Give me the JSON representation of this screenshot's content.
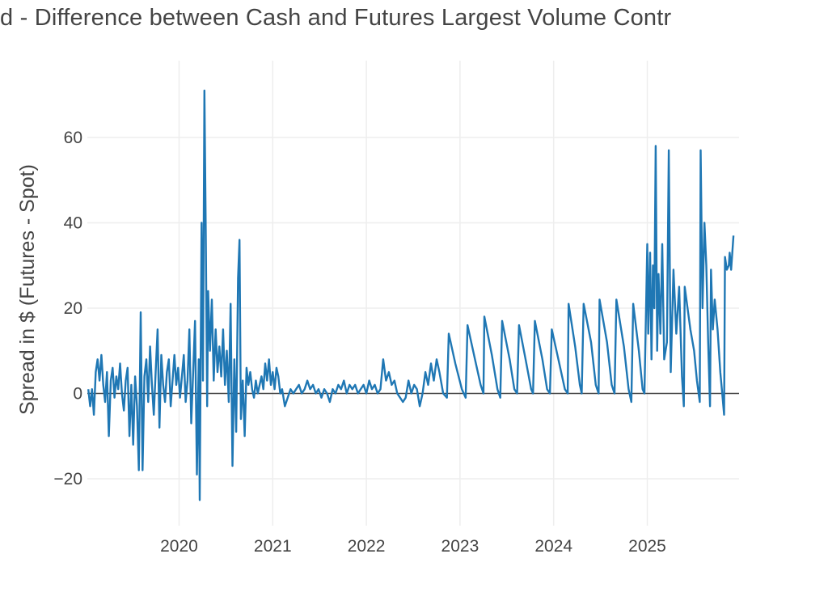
{
  "chart_data": {
    "type": "line",
    "title": "d - Difference between Cash and Futures Largest Volume Contr",
    "xlabel": "",
    "ylabel": "Spread in $ (Futures - Spot)",
    "x_tick_labels": [
      "2020",
      "2021",
      "2022",
      "2023",
      "2024",
      "2025"
    ],
    "x_tick_values": [
      2020,
      2021,
      2022,
      2023,
      2024,
      2025
    ],
    "y_tick_labels": [
      "60",
      "40",
      "20",
      "0",
      "−20"
    ],
    "y_tick_values": [
      60,
      40,
      20,
      0,
      -20
    ],
    "xlim": [
      2019.02,
      2025.98
    ],
    "ylim": [
      -31,
      78
    ],
    "grid": true,
    "zero_line": true,
    "line_color": "#1f77b4",
    "series": [
      {
        "name": "Spread",
        "points": [
          [
            2019.03,
            1
          ],
          [
            2019.05,
            -3
          ],
          [
            2019.07,
            1
          ],
          [
            2019.09,
            -5
          ],
          [
            2019.11,
            5
          ],
          [
            2019.13,
            8
          ],
          [
            2019.15,
            3
          ],
          [
            2019.17,
            9
          ],
          [
            2019.19,
            2
          ],
          [
            2019.21,
            -2
          ],
          [
            2019.23,
            5
          ],
          [
            2019.25,
            -10
          ],
          [
            2019.27,
            3
          ],
          [
            2019.29,
            6
          ],
          [
            2019.31,
            -1
          ],
          [
            2019.33,
            4
          ],
          [
            2019.35,
            1
          ],
          [
            2019.37,
            7
          ],
          [
            2019.39,
            0
          ],
          [
            2019.41,
            -4
          ],
          [
            2019.43,
            3
          ],
          [
            2019.45,
            6
          ],
          [
            2019.47,
            -10
          ],
          [
            2019.49,
            2
          ],
          [
            2019.51,
            -12
          ],
          [
            2019.53,
            4
          ],
          [
            2019.55,
            -3
          ],
          [
            2019.57,
            -18
          ],
          [
            2019.59,
            19
          ],
          [
            2019.61,
            -18
          ],
          [
            2019.63,
            4
          ],
          [
            2019.65,
            8
          ],
          [
            2019.67,
            -2
          ],
          [
            2019.69,
            11
          ],
          [
            2019.71,
            2
          ],
          [
            2019.73,
            -5
          ],
          [
            2019.75,
            5
          ],
          [
            2019.77,
            15
          ],
          [
            2019.79,
            -8
          ],
          [
            2019.81,
            9
          ],
          [
            2019.83,
            2
          ],
          [
            2019.85,
            -2
          ],
          [
            2019.87,
            5
          ],
          [
            2019.89,
            8
          ],
          [
            2019.91,
            -3
          ],
          [
            2019.93,
            3
          ],
          [
            2019.95,
            9
          ],
          [
            2019.97,
            2
          ],
          [
            2019.99,
            6
          ],
          [
            2020.01,
            -1
          ],
          [
            2020.03,
            4
          ],
          [
            2020.05,
            9
          ],
          [
            2020.07,
            -2
          ],
          [
            2020.09,
            3
          ],
          [
            2020.11,
            15
          ],
          [
            2020.13,
            -7
          ],
          [
            2020.15,
            5
          ],
          [
            2020.17,
            17
          ],
          [
            2020.19,
            -19
          ],
          [
            2020.21,
            8
          ],
          [
            2020.22,
            -25
          ],
          [
            2020.24,
            40
          ],
          [
            2020.255,
            3
          ],
          [
            2020.27,
            71
          ],
          [
            2020.285,
            37
          ],
          [
            2020.3,
            -3
          ],
          [
            2020.31,
            24
          ],
          [
            2020.33,
            10
          ],
          [
            2020.35,
            22
          ],
          [
            2020.37,
            3
          ],
          [
            2020.39,
            15
          ],
          [
            2020.41,
            5
          ],
          [
            2020.43,
            11
          ],
          [
            2020.45,
            4
          ],
          [
            2020.47,
            15
          ],
          [
            2020.49,
            2
          ],
          [
            2020.51,
            10
          ],
          [
            2020.53,
            -2
          ],
          [
            2020.55,
            21
          ],
          [
            2020.57,
            -17
          ],
          [
            2020.59,
            8
          ],
          [
            2020.61,
            -9
          ],
          [
            2020.63,
            27
          ],
          [
            2020.645,
            36
          ],
          [
            2020.66,
            -6
          ],
          [
            2020.68,
            3
          ],
          [
            2020.7,
            -10
          ],
          [
            2020.72,
            6
          ],
          [
            2020.74,
            2
          ],
          [
            2020.76,
            5
          ],
          [
            2020.78,
            1
          ],
          [
            2020.8,
            -1
          ],
          [
            2020.82,
            3
          ],
          [
            2020.84,
            0
          ],
          [
            2020.86,
            2
          ],
          [
            2020.88,
            4
          ],
          [
            2020.9,
            1
          ],
          [
            2020.92,
            7
          ],
          [
            2020.94,
            3
          ],
          [
            2020.96,
            8
          ],
          [
            2020.98,
            2
          ],
          [
            2021.0,
            5
          ],
          [
            2021.02,
            1
          ],
          [
            2021.04,
            6
          ],
          [
            2021.06,
            4
          ],
          [
            2021.08,
            0
          ],
          [
            2021.1,
            1
          ],
          [
            2021.13,
            -3
          ],
          [
            2021.16,
            -1
          ],
          [
            2021.19,
            1
          ],
          [
            2021.22,
            0
          ],
          [
            2021.25,
            1
          ],
          [
            2021.28,
            2
          ],
          [
            2021.31,
            0
          ],
          [
            2021.34,
            1
          ],
          [
            2021.37,
            3
          ],
          [
            2021.4,
            1
          ],
          [
            2021.43,
            2
          ],
          [
            2021.46,
            0
          ],
          [
            2021.49,
            1
          ],
          [
            2021.52,
            -1
          ],
          [
            2021.55,
            1
          ],
          [
            2021.58,
            0
          ],
          [
            2021.61,
            -2
          ],
          [
            2021.64,
            1
          ],
          [
            2021.67,
            0
          ],
          [
            2021.7,
            2
          ],
          [
            2021.73,
            1
          ],
          [
            2021.76,
            3
          ],
          [
            2021.79,
            0
          ],
          [
            2021.82,
            2
          ],
          [
            2021.85,
            1
          ],
          [
            2021.88,
            2
          ],
          [
            2021.91,
            0
          ],
          [
            2021.94,
            1
          ],
          [
            2021.97,
            2
          ],
          [
            2022.0,
            0
          ],
          [
            2022.03,
            3
          ],
          [
            2022.06,
            1
          ],
          [
            2022.09,
            2
          ],
          [
            2022.12,
            0
          ],
          [
            2022.15,
            1
          ],
          [
            2022.18,
            8
          ],
          [
            2022.21,
            3
          ],
          [
            2022.24,
            5
          ],
          [
            2022.27,
            2
          ],
          [
            2022.3,
            3
          ],
          [
            2022.33,
            0
          ],
          [
            2022.36,
            -1
          ],
          [
            2022.39,
            -2
          ],
          [
            2022.42,
            -1
          ],
          [
            2022.45,
            3
          ],
          [
            2022.48,
            0
          ],
          [
            2022.51,
            2
          ],
          [
            2022.54,
            1
          ],
          [
            2022.57,
            -3
          ],
          [
            2022.6,
            0
          ],
          [
            2022.63,
            5
          ],
          [
            2022.66,
            2
          ],
          [
            2022.69,
            7
          ],
          [
            2022.72,
            3
          ],
          [
            2022.75,
            8
          ],
          [
            2022.78,
            5
          ],
          [
            2022.82,
            0
          ],
          [
            2022.86,
            -1
          ],
          [
            2022.88,
            14
          ],
          [
            2022.95,
            7
          ],
          [
            2023.02,
            1
          ],
          [
            2023.06,
            -1
          ],
          [
            2023.08,
            16
          ],
          [
            2023.16,
            8
          ],
          [
            2023.22,
            2
          ],
          [
            2023.25,
            0
          ],
          [
            2023.26,
            18
          ],
          [
            2023.34,
            9
          ],
          [
            2023.4,
            1
          ],
          [
            2023.43,
            -1
          ],
          [
            2023.45,
            17
          ],
          [
            2023.53,
            8
          ],
          [
            2023.58,
            1
          ],
          [
            2023.61,
            0
          ],
          [
            2023.63,
            16
          ],
          [
            2023.7,
            8
          ],
          [
            2023.76,
            1
          ],
          [
            2023.78,
            0
          ],
          [
            2023.8,
            17
          ],
          [
            2023.88,
            8
          ],
          [
            2023.93,
            1
          ],
          [
            2023.96,
            0
          ],
          [
            2023.98,
            15
          ],
          [
            2024.06,
            7
          ],
          [
            2024.12,
            1
          ],
          [
            2024.15,
            0
          ],
          [
            2024.16,
            21
          ],
          [
            2024.23,
            11
          ],
          [
            2024.28,
            2
          ],
          [
            2024.3,
            0
          ],
          [
            2024.32,
            21
          ],
          [
            2024.4,
            12
          ],
          [
            2024.45,
            2
          ],
          [
            2024.48,
            0
          ],
          [
            2024.49,
            22
          ],
          [
            2024.57,
            12
          ],
          [
            2024.62,
            2
          ],
          [
            2024.65,
            0
          ],
          [
            2024.67,
            22
          ],
          [
            2024.75,
            11
          ],
          [
            2024.8,
            1
          ],
          [
            2024.83,
            -2
          ],
          [
            2024.85,
            21
          ],
          [
            2024.91,
            10
          ],
          [
            2024.95,
            1
          ],
          [
            2024.97,
            0
          ],
          [
            2024.99,
            24
          ],
          [
            2025.0,
            35
          ],
          [
            2025.01,
            14
          ],
          [
            2025.03,
            33
          ],
          [
            2025.045,
            8
          ],
          [
            2025.06,
            30
          ],
          [
            2025.075,
            20
          ],
          [
            2025.09,
            58
          ],
          [
            2025.105,
            10
          ],
          [
            2025.12,
            28
          ],
          [
            2025.14,
            14
          ],
          [
            2025.16,
            35
          ],
          [
            2025.18,
            8
          ],
          [
            2025.21,
            12
          ],
          [
            2025.23,
            57
          ],
          [
            2025.25,
            5
          ],
          [
            2025.28,
            29
          ],
          [
            2025.31,
            14
          ],
          [
            2025.34,
            25
          ],
          [
            2025.37,
            4
          ],
          [
            2025.39,
            -3
          ],
          [
            2025.4,
            25
          ],
          [
            2025.43,
            20
          ],
          [
            2025.46,
            15
          ],
          [
            2025.5,
            10
          ],
          [
            2025.53,
            3
          ],
          [
            2025.56,
            -2
          ],
          [
            2025.57,
            57
          ],
          [
            2025.59,
            20
          ],
          [
            2025.61,
            40
          ],
          [
            2025.63,
            30
          ],
          [
            2025.65,
            12
          ],
          [
            2025.67,
            -3
          ],
          [
            2025.68,
            29
          ],
          [
            2025.7,
            15
          ],
          [
            2025.72,
            22
          ],
          [
            2025.75,
            15
          ],
          [
            2025.78,
            5
          ],
          [
            2025.8,
            0
          ],
          [
            2025.82,
            -5
          ],
          [
            2025.83,
            32
          ],
          [
            2025.85,
            29
          ],
          [
            2025.87,
            30
          ],
          [
            2025.88,
            33
          ],
          [
            2025.895,
            29
          ],
          [
            2025.92,
            37
          ]
        ]
      }
    ]
  }
}
